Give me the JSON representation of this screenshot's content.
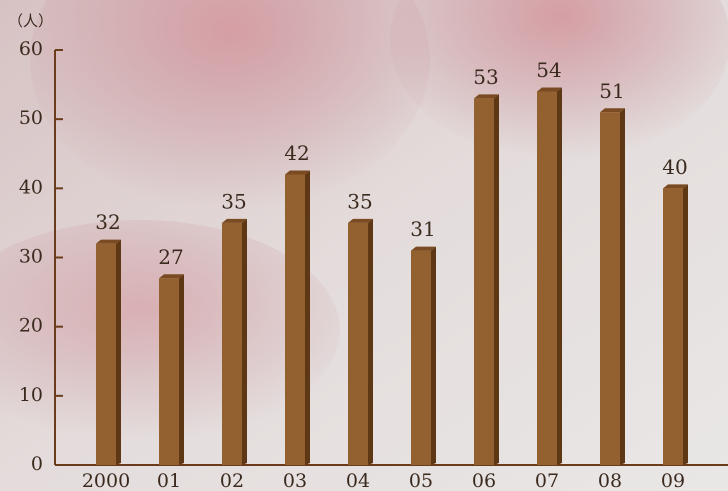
{
  "chart_data": {
    "type": "bar",
    "y_unit": "（人）",
    "categories": [
      "2000",
      "01",
      "02",
      "03",
      "04",
      "05",
      "06",
      "07",
      "08",
      "09"
    ],
    "values": [
      32,
      27,
      35,
      42,
      35,
      31,
      53,
      54,
      51,
      40
    ],
    "color": "#93602f",
    "ylim": [
      0,
      60
    ],
    "yticks": [
      0,
      10,
      20,
      30,
      40,
      50,
      60
    ]
  }
}
